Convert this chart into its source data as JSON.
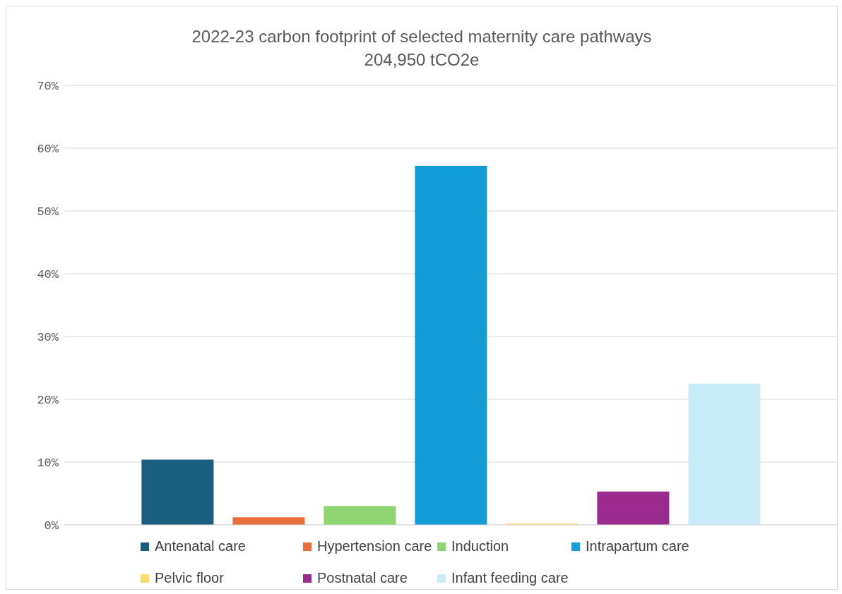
{
  "chart_data": {
    "type": "bar",
    "title": "2022-23 carbon footprint of selected maternity care pathways",
    "subtitle": "204,950 tCO2e",
    "categories": [
      null
    ],
    "series": [
      {
        "name": "Antenatal care",
        "color": "#1a5e80",
        "values": [
          10.4
        ]
      },
      {
        "name": "Hypertension care",
        "color": "#e8703a",
        "values": [
          1.2
        ]
      },
      {
        "name": "Induction",
        "color": "#8fd672",
        "values": [
          3.0
        ]
      },
      {
        "name": "Intrapartum care",
        "color": "#139dd6",
        "values": [
          57.2
        ]
      },
      {
        "name": "Pelvic floor",
        "color": "#fddc6f",
        "values": [
          0.2
        ]
      },
      {
        "name": "Postnatal care",
        "color": "#9b2a8f",
        "values": [
          5.3
        ]
      },
      {
        "name": "Infant feeding care",
        "color": "#c9ecf9",
        "values": [
          22.5
        ]
      }
    ],
    "ylim": [
      0,
      70
    ],
    "yticks": [
      {
        "value": 0,
        "label": "0%"
      },
      {
        "value": 10,
        "label": "10%"
      },
      {
        "value": 20,
        "label": "20%"
      },
      {
        "value": 30,
        "label": "30%"
      },
      {
        "value": 40,
        "label": "40%"
      },
      {
        "value": 50,
        "label": "50%"
      },
      {
        "value": 60,
        "label": "60%"
      },
      {
        "value": 70,
        "label": "70%"
      }
    ],
    "grid": "y",
    "legend": "bottom"
  }
}
